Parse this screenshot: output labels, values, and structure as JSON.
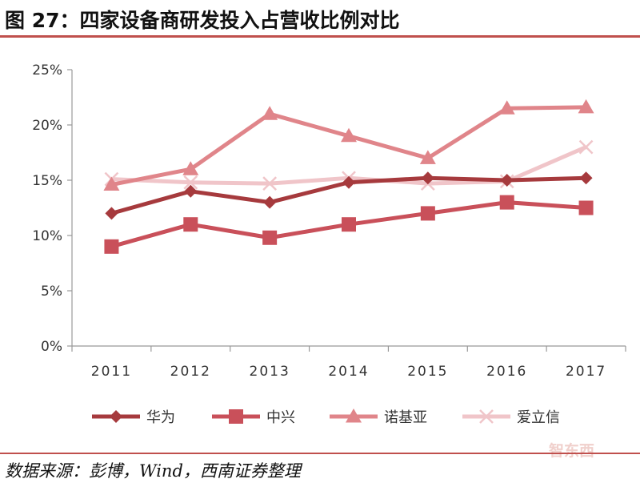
{
  "title": "图 27：四家设备商研发投入占营收比例对比",
  "source": "数据来源：彭博，Wind，西南证券整理",
  "watermark": "智东西",
  "chart_data": {
    "type": "line",
    "x": [
      "2011",
      "2012",
      "2013",
      "2014",
      "2015",
      "2016",
      "2017"
    ],
    "ylim": [
      0,
      25
    ],
    "yticks": [
      "0%",
      "5%",
      "10%",
      "15%",
      "20%",
      "25%"
    ],
    "ytick_values": [
      0,
      5,
      10,
      15,
      20,
      25
    ],
    "unit": "%",
    "grid": false,
    "legend_position": "bottom",
    "series": [
      {
        "name": "华为",
        "values": [
          12.0,
          14.0,
          13.0,
          14.8,
          15.2,
          15.0,
          15.2
        ],
        "color": "#a63a3d",
        "marker": "diamond"
      },
      {
        "name": "中兴",
        "values": [
          9.0,
          11.0,
          9.8,
          11.0,
          12.0,
          13.0,
          12.5
        ],
        "color": "#c9505a",
        "marker": "square"
      },
      {
        "name": "诺基亚",
        "values": [
          14.6,
          16.0,
          21.0,
          19.0,
          17.0,
          21.5,
          21.6
        ],
        "color": "#e0858a",
        "marker": "triangle"
      },
      {
        "name": "爱立信",
        "values": [
          15.1,
          14.8,
          14.7,
          15.2,
          14.7,
          14.9,
          18.0
        ],
        "color": "#f0c5c9",
        "marker": "x"
      }
    ]
  }
}
